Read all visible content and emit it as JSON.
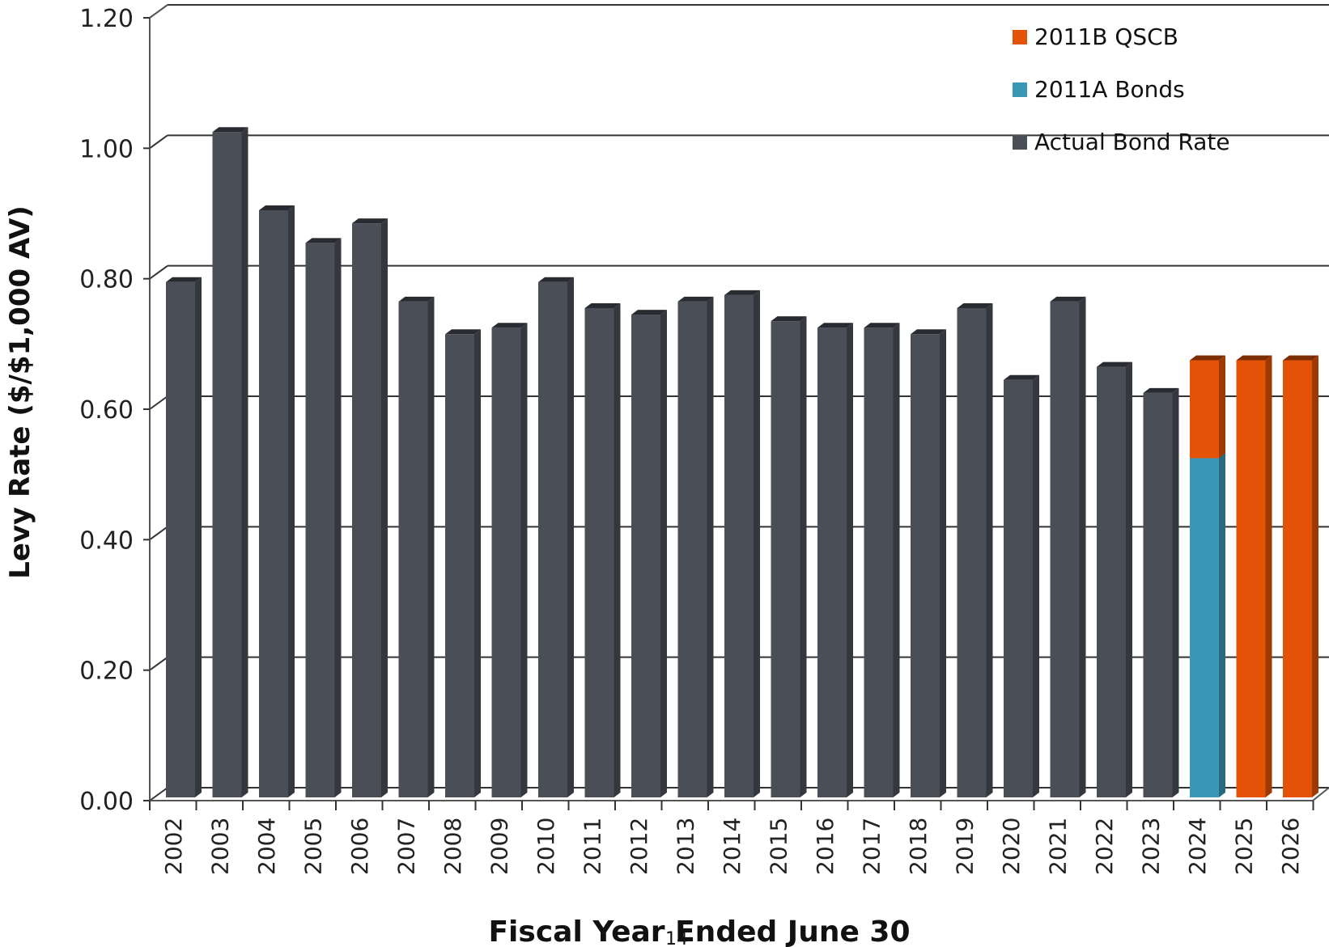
{
  "page_number": "14",
  "chart_data": {
    "type": "bar",
    "stacked": true,
    "xlabel": "Fiscal Year Ended June 30",
    "ylabel": "Levy Rate ($/$1,000 AV)",
    "ylim": [
      0,
      1.2
    ],
    "yticks": [
      "0.00",
      "0.20",
      "0.40",
      "0.60",
      "0.80",
      "1.00",
      "1.20"
    ],
    "grid": true,
    "legend_position": "top-right",
    "categories": [
      "2002",
      "2003",
      "2004",
      "2005",
      "2006",
      "2007",
      "2008",
      "2009",
      "2010",
      "2011",
      "2012",
      "2013",
      "2014",
      "2015",
      "2016",
      "2017",
      "2018",
      "2019",
      "2020",
      "2021",
      "2022",
      "2023",
      "2024",
      "2025",
      "2026"
    ],
    "series": [
      {
        "name": "Actual Bond Rate",
        "color": "#4a4e57",
        "values": [
          0.79,
          1.02,
          0.9,
          0.85,
          0.88,
          0.76,
          0.71,
          0.72,
          0.79,
          0.75,
          0.74,
          0.76,
          0.77,
          0.73,
          0.72,
          0.72,
          0.71,
          0.75,
          0.64,
          0.76,
          0.66,
          0.62,
          0,
          0,
          0
        ]
      },
      {
        "name": "2011A Bonds",
        "color": "#3a97b6",
        "values": [
          0,
          0,
          0,
          0,
          0,
          0,
          0,
          0,
          0,
          0,
          0,
          0,
          0,
          0,
          0,
          0,
          0,
          0,
          0,
          0,
          0,
          0,
          0.52,
          0,
          0
        ]
      },
      {
        "name": "2011B QSCB",
        "color": "#e35206",
        "values": [
          0,
          0,
          0,
          0,
          0,
          0,
          0,
          0,
          0,
          0,
          0,
          0,
          0,
          0,
          0,
          0,
          0,
          0,
          0,
          0,
          0,
          0,
          0.15,
          0.67,
          0.67
        ]
      }
    ],
    "legend_order": [
      "2011B QSCB",
      "2011A Bonds",
      "Actual Bond Rate"
    ]
  }
}
